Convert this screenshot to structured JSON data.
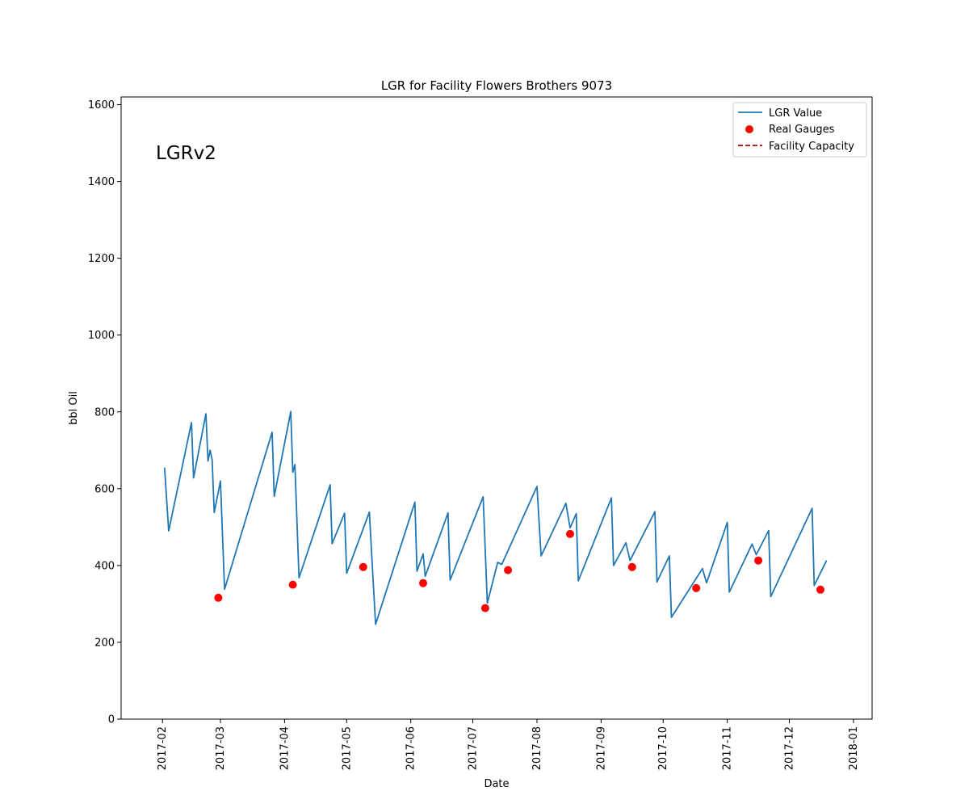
{
  "chart_data": {
    "type": "line",
    "title": "LGR for Facility Flowers Brothers 9073",
    "xlabel": "Date",
    "ylabel": "bbl Oil",
    "annotation": "LGRv2",
    "ylim": [
      0,
      1620
    ],
    "xlim": [
      "2017-01-12",
      "2018-01-10"
    ],
    "grid": false,
    "legend_position": "top-right",
    "x_ticks": [
      "2017-02",
      "2017-03",
      "2017-04",
      "2017-05",
      "2017-06",
      "2017-07",
      "2017-08",
      "2017-09",
      "2017-10",
      "2017-11",
      "2017-12",
      "2018-01"
    ],
    "y_ticks": [
      0,
      200,
      400,
      600,
      800,
      1000,
      1200,
      1400,
      1600
    ],
    "legend": [
      {
        "label": "LGR Value",
        "marker": "line",
        "color": "#1f77b4"
      },
      {
        "label": "Real Gauges",
        "marker": "dot",
        "color": "#ff0000"
      },
      {
        "label": "Facility Capacity",
        "marker": "dashed",
        "color": "#aa0000"
      }
    ],
    "series": [
      {
        "name": "LGR Value",
        "type": "line",
        "color": "#1f77b4",
        "points": [
          [
            "2017-02-02",
            655
          ],
          [
            "2017-02-04",
            490
          ],
          [
            "2017-02-15",
            772
          ],
          [
            "2017-02-16",
            628
          ],
          [
            "2017-02-22",
            795
          ],
          [
            "2017-02-23",
            672
          ],
          [
            "2017-02-24",
            700
          ],
          [
            "2017-02-25",
            675
          ],
          [
            "2017-02-26",
            538
          ],
          [
            "2017-03-01",
            620
          ],
          [
            "2017-03-03",
            338
          ],
          [
            "2017-03-26",
            747
          ],
          [
            "2017-03-27",
            580
          ],
          [
            "2017-04-04",
            801
          ],
          [
            "2017-04-05",
            643
          ],
          [
            "2017-04-06",
            663
          ],
          [
            "2017-04-08",
            368
          ],
          [
            "2017-04-23",
            610
          ],
          [
            "2017-04-24",
            457
          ],
          [
            "2017-04-30",
            536
          ],
          [
            "2017-05-01",
            380
          ],
          [
            "2017-05-12",
            539
          ],
          [
            "2017-05-15",
            247
          ],
          [
            "2017-06-03",
            565
          ],
          [
            "2017-06-04",
            385
          ],
          [
            "2017-06-07",
            430
          ],
          [
            "2017-06-08",
            372
          ],
          [
            "2017-06-19",
            537
          ],
          [
            "2017-06-20",
            362
          ],
          [
            "2017-07-06",
            579
          ],
          [
            "2017-07-08",
            302
          ],
          [
            "2017-07-13",
            408
          ],
          [
            "2017-07-15",
            403
          ],
          [
            "2017-08-01",
            606
          ],
          [
            "2017-08-03",
            425
          ],
          [
            "2017-08-15",
            562
          ],
          [
            "2017-08-17",
            498
          ],
          [
            "2017-08-20",
            535
          ],
          [
            "2017-08-21",
            360
          ],
          [
            "2017-09-06",
            576
          ],
          [
            "2017-09-07",
            400
          ],
          [
            "2017-09-13",
            459
          ],
          [
            "2017-09-15",
            413
          ],
          [
            "2017-09-27",
            540
          ],
          [
            "2017-09-28",
            357
          ],
          [
            "2017-10-04",
            425
          ],
          [
            "2017-10-05",
            265
          ],
          [
            "2017-10-20",
            392
          ],
          [
            "2017-10-22",
            355
          ],
          [
            "2017-11-01",
            512
          ],
          [
            "2017-11-02",
            331
          ],
          [
            "2017-11-13",
            456
          ],
          [
            "2017-11-15",
            428
          ],
          [
            "2017-11-21",
            491
          ],
          [
            "2017-11-22",
            319
          ],
          [
            "2017-12-12",
            549
          ],
          [
            "2017-12-13",
            348
          ],
          [
            "2017-12-19",
            413
          ]
        ]
      },
      {
        "name": "Real Gauges",
        "type": "scatter",
        "color": "#ff0000",
        "points": [
          [
            "2017-02-28",
            316
          ],
          [
            "2017-04-05",
            350
          ],
          [
            "2017-05-09",
            396
          ],
          [
            "2017-06-07",
            354
          ],
          [
            "2017-07-07",
            289
          ],
          [
            "2017-07-18",
            388
          ],
          [
            "2017-08-17",
            482
          ],
          [
            "2017-09-16",
            396
          ],
          [
            "2017-10-17",
            341
          ],
          [
            "2017-11-16",
            413
          ],
          [
            "2017-12-16",
            337
          ]
        ]
      },
      {
        "name": "Facility Capacity",
        "type": "line",
        "dashed": true,
        "color": "#aa0000",
        "points": []
      }
    ]
  }
}
